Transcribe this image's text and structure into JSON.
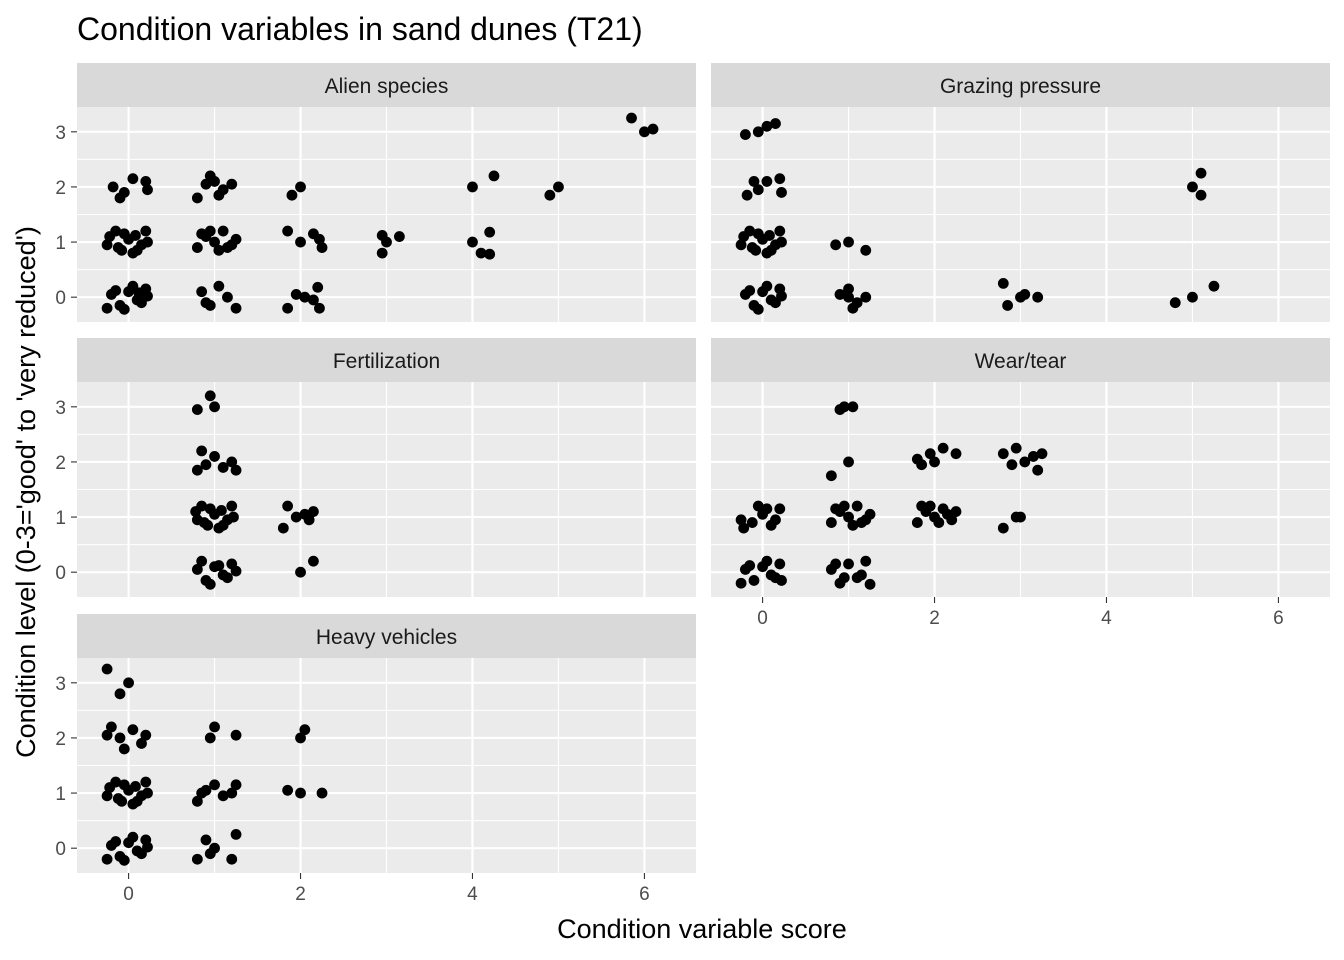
{
  "chart_data": {
    "type": "scatter",
    "title": "Condition variables in sand dunes (T21)",
    "xlabel": "Condition variable score",
    "ylabel": "Condition level (0-3='good' to 'very reduced')",
    "xlim": [
      -0.6,
      6.6
    ],
    "ylim": [
      -0.45,
      3.45
    ],
    "x_ticks": [
      0,
      2,
      4,
      6
    ],
    "y_ticks": [
      0,
      1,
      2,
      3
    ],
    "x_minor_ticks": [
      1,
      3,
      5
    ],
    "grid": true,
    "point_color": "#000000",
    "panel_background": "#ebebeb",
    "strip_background": "#d9d9d9",
    "jitter": true,
    "facets": [
      {
        "name": "Alien species",
        "points": [
          [
            -0.2,
            0.05
          ],
          [
            -0.1,
            -0.15
          ],
          [
            0,
            0.1
          ],
          [
            0.1,
            -0.05
          ],
          [
            0.2,
            0.15
          ],
          [
            -0.25,
            -0.2
          ],
          [
            0.05,
            0.2
          ],
          [
            0.15,
            -0.1
          ],
          [
            -0.15,
            0.12
          ],
          [
            0.22,
            0.02
          ],
          [
            -0.05,
            -0.22
          ],
          [
            0.12,
            0.08
          ],
          [
            -0.22,
            1.1
          ],
          [
            -0.12,
            0.9
          ],
          [
            0,
            1.05
          ],
          [
            0.1,
            0.85
          ],
          [
            0.2,
            1.2
          ],
          [
            -0.05,
            1.15
          ],
          [
            0.15,
            0.95
          ],
          [
            -0.25,
            0.95
          ],
          [
            0.05,
            0.8
          ],
          [
            0.22,
            1.0
          ],
          [
            -0.15,
            1.2
          ],
          [
            0.08,
            1.12
          ],
          [
            -0.08,
            0.85
          ],
          [
            -0.18,
            2.0
          ],
          [
            -0.05,
            1.9
          ],
          [
            0.05,
            2.15
          ],
          [
            0.2,
            2.1
          ],
          [
            -0.1,
            1.8
          ],
          [
            0.22,
            1.95
          ],
          [
            0.85,
            0.1
          ],
          [
            0.95,
            -0.15
          ],
          [
            1.05,
            0.2
          ],
          [
            1.15,
            0.0
          ],
          [
            1.25,
            -0.2
          ],
          [
            0.9,
            -0.1
          ],
          [
            0.8,
            0.9
          ],
          [
            0.9,
            1.1
          ],
          [
            1.0,
            1.0
          ],
          [
            1.1,
            1.2
          ],
          [
            1.2,
            0.95
          ],
          [
            0.85,
            1.15
          ],
          [
            1.05,
            0.85
          ],
          [
            1.25,
            1.05
          ],
          [
            0.95,
            1.2
          ],
          [
            1.15,
            0.9
          ],
          [
            0.8,
            1.8
          ],
          [
            0.9,
            2.05
          ],
          [
            1.0,
            2.1
          ],
          [
            1.1,
            1.95
          ],
          [
            1.2,
            2.05
          ],
          [
            0.95,
            2.2
          ],
          [
            1.05,
            1.85
          ],
          [
            1.85,
            -0.2
          ],
          [
            1.95,
            0.05
          ],
          [
            2.05,
            0.0
          ],
          [
            2.15,
            -0.05
          ],
          [
            2.2,
            0.18
          ],
          [
            2.22,
            -0.2
          ],
          [
            1.85,
            1.2
          ],
          [
            2.0,
            1.0
          ],
          [
            2.15,
            1.15
          ],
          [
            2.25,
            0.9
          ],
          [
            2.22,
            1.05
          ],
          [
            1.9,
            1.85
          ],
          [
            2.0,
            2.0
          ],
          [
            2.95,
            0.8
          ],
          [
            3.0,
            1.0
          ],
          [
            3.15,
            1.1
          ],
          [
            2.95,
            1.12
          ],
          [
            4.0,
            1.0
          ],
          [
            4.1,
            0.8
          ],
          [
            4.2,
            1.18
          ],
          [
            4.2,
            0.78
          ],
          [
            4.0,
            2.0
          ],
          [
            4.25,
            2.2
          ],
          [
            4.9,
            1.85
          ],
          [
            5.0,
            2.0
          ],
          [
            5.85,
            3.25
          ],
          [
            6.0,
            3.0
          ],
          [
            6.1,
            3.05
          ]
        ]
      },
      {
        "name": "Grazing pressure",
        "points": [
          [
            -0.2,
            0.05
          ],
          [
            -0.1,
            -0.15
          ],
          [
            0,
            0.1
          ],
          [
            0.1,
            -0.05
          ],
          [
            0.2,
            0.15
          ],
          [
            0.05,
            0.2
          ],
          [
            -0.05,
            -0.22
          ],
          [
            0.15,
            -0.1
          ],
          [
            -0.15,
            0.12
          ],
          [
            0.22,
            0.02
          ],
          [
            -0.22,
            1.1
          ],
          [
            -0.12,
            0.9
          ],
          [
            0,
            1.05
          ],
          [
            0.1,
            0.85
          ],
          [
            0.2,
            1.2
          ],
          [
            -0.05,
            1.15
          ],
          [
            0.15,
            0.95
          ],
          [
            -0.25,
            0.95
          ],
          [
            0.05,
            0.8
          ],
          [
            0.22,
            1.0
          ],
          [
            -0.15,
            1.2
          ],
          [
            0.08,
            1.12
          ],
          [
            -0.08,
            0.85
          ],
          [
            -0.18,
            1.85
          ],
          [
            -0.05,
            1.95
          ],
          [
            0.05,
            2.1
          ],
          [
            0.2,
            2.15
          ],
          [
            -0.1,
            2.1
          ],
          [
            0.22,
            1.9
          ],
          [
            -0.05,
            3.0
          ],
          [
            0.05,
            3.1
          ],
          [
            0.15,
            3.15
          ],
          [
            -0.2,
            2.95
          ],
          [
            1.0,
            0.0
          ],
          [
            1.0,
            0.15
          ],
          [
            0.9,
            0.05
          ],
          [
            1.1,
            -0.1
          ],
          [
            1.2,
            0.0
          ],
          [
            1.05,
            -0.2
          ],
          [
            0.85,
            0.95
          ],
          [
            1.0,
            1.0
          ],
          [
            1.2,
            0.85
          ],
          [
            3.0,
            0.0
          ],
          [
            3.05,
            0.05
          ],
          [
            2.8,
            0.25
          ],
          [
            2.85,
            -0.15
          ],
          [
            3.2,
            0.0
          ],
          [
            5.0,
            2.0
          ],
          [
            5.1,
            2.25
          ],
          [
            5.1,
            1.85
          ],
          [
            5.0,
            0.0
          ],
          [
            4.8,
            -0.1
          ],
          [
            5.25,
            0.2
          ]
        ]
      },
      {
        "name": "Fertilization",
        "points": [
          [
            0.8,
            0.05
          ],
          [
            0.9,
            -0.15
          ],
          [
            1.0,
            0.1
          ],
          [
            1.1,
            -0.05
          ],
          [
            1.2,
            0.15
          ],
          [
            0.85,
            0.2
          ],
          [
            0.95,
            -0.22
          ],
          [
            1.15,
            -0.1
          ],
          [
            1.05,
            0.12
          ],
          [
            1.25,
            0.02
          ],
          [
            0.78,
            1.1
          ],
          [
            0.88,
            0.9
          ],
          [
            1.0,
            1.05
          ],
          [
            1.1,
            0.85
          ],
          [
            1.2,
            1.2
          ],
          [
            0.95,
            1.15
          ],
          [
            1.15,
            0.95
          ],
          [
            0.8,
            0.95
          ],
          [
            1.05,
            0.8
          ],
          [
            1.22,
            1.0
          ],
          [
            0.85,
            1.2
          ],
          [
            1.08,
            1.12
          ],
          [
            0.92,
            0.85
          ],
          [
            0.8,
            1.85
          ],
          [
            0.9,
            1.95
          ],
          [
            1.0,
            2.1
          ],
          [
            1.1,
            1.9
          ],
          [
            1.2,
            2.0
          ],
          [
            0.85,
            2.2
          ],
          [
            1.25,
            1.85
          ],
          [
            0.8,
            2.95
          ],
          [
            1.0,
            3.0
          ],
          [
            0.95,
            3.2
          ],
          [
            1.8,
            0.8
          ],
          [
            1.85,
            1.2
          ],
          [
            1.95,
            1.0
          ],
          [
            2.05,
            1.05
          ],
          [
            2.1,
            0.95
          ],
          [
            2.15,
            1.1
          ],
          [
            2.0,
            0.0
          ],
          [
            2.15,
            0.2
          ]
        ]
      },
      {
        "name": "Wear/tear",
        "points": [
          [
            -0.2,
            0.05
          ],
          [
            -0.1,
            -0.15
          ],
          [
            0,
            0.1
          ],
          [
            0.1,
            -0.05
          ],
          [
            0.2,
            0.15
          ],
          [
            -0.25,
            -0.2
          ],
          [
            0.05,
            0.2
          ],
          [
            0.15,
            -0.1
          ],
          [
            -0.15,
            0.12
          ],
          [
            0.22,
            -0.15
          ],
          [
            -0.22,
            0.8
          ],
          [
            -0.12,
            0.9
          ],
          [
            0,
            1.05
          ],
          [
            0.1,
            0.85
          ],
          [
            0.2,
            1.15
          ],
          [
            -0.05,
            1.2
          ],
          [
            0.15,
            0.95
          ],
          [
            -0.25,
            0.95
          ],
          [
            0.05,
            1.15
          ],
          [
            0.8,
            0.05
          ],
          [
            0.9,
            -0.2
          ],
          [
            1.0,
            0.15
          ],
          [
            1.1,
            -0.1
          ],
          [
            1.2,
            0.2
          ],
          [
            0.85,
            0.15
          ],
          [
            0.95,
            -0.1
          ],
          [
            1.15,
            -0.05
          ],
          [
            1.25,
            -0.22
          ],
          [
            0.8,
            0.9
          ],
          [
            0.9,
            1.1
          ],
          [
            1.0,
            1.0
          ],
          [
            1.1,
            1.2
          ],
          [
            1.2,
            0.95
          ],
          [
            0.85,
            1.15
          ],
          [
            1.05,
            0.85
          ],
          [
            1.25,
            1.05
          ],
          [
            0.95,
            1.2
          ],
          [
            1.15,
            0.9
          ],
          [
            0.8,
            1.75
          ],
          [
            1.0,
            2.0
          ],
          [
            0.95,
            3.0
          ],
          [
            1.05,
            3.0
          ],
          [
            0.9,
            2.95
          ],
          [
            1.8,
            0.9
          ],
          [
            1.9,
            1.1
          ],
          [
            2.0,
            1.0
          ],
          [
            2.1,
            1.15
          ],
          [
            2.2,
            0.95
          ],
          [
            1.85,
            1.2
          ],
          [
            2.05,
            0.9
          ],
          [
            2.25,
            1.1
          ],
          [
            1.95,
            1.2
          ],
          [
            2.15,
            1.05
          ],
          [
            1.85,
            1.95
          ],
          [
            2.0,
            2.0
          ],
          [
            1.95,
            2.15
          ],
          [
            2.1,
            2.25
          ],
          [
            2.25,
            2.15
          ],
          [
            1.8,
            2.05
          ],
          [
            2.8,
            0.8
          ],
          [
            2.95,
            1.0
          ],
          [
            3.0,
            1.0
          ],
          [
            2.8,
            2.15
          ],
          [
            2.95,
            2.25
          ],
          [
            3.05,
            2.0
          ],
          [
            3.15,
            2.1
          ],
          [
            3.2,
            1.85
          ],
          [
            2.9,
            1.95
          ],
          [
            3.25,
            2.15
          ]
        ]
      },
      {
        "name": "Heavy vehicles",
        "points": [
          [
            -0.2,
            0.05
          ],
          [
            -0.1,
            -0.15
          ],
          [
            0,
            0.1
          ],
          [
            0.1,
            -0.05
          ],
          [
            0.2,
            0.15
          ],
          [
            -0.25,
            -0.2
          ],
          [
            0.05,
            0.2
          ],
          [
            0.15,
            -0.1
          ],
          [
            -0.15,
            0.12
          ],
          [
            0.22,
            0.02
          ],
          [
            -0.05,
            -0.22
          ],
          [
            -0.22,
            1.1
          ],
          [
            -0.12,
            0.9
          ],
          [
            0,
            1.05
          ],
          [
            0.1,
            0.85
          ],
          [
            0.2,
            1.2
          ],
          [
            -0.05,
            1.15
          ],
          [
            0.15,
            0.95
          ],
          [
            -0.25,
            0.95
          ],
          [
            0.05,
            0.8
          ],
          [
            0.22,
            1.0
          ],
          [
            -0.15,
            1.2
          ],
          [
            0.08,
            1.12
          ],
          [
            -0.08,
            0.85
          ],
          [
            -0.2,
            2.2
          ],
          [
            -0.05,
            1.8
          ],
          [
            0.05,
            2.15
          ],
          [
            0.2,
            2.05
          ],
          [
            -0.1,
            2.0
          ],
          [
            0.15,
            1.9
          ],
          [
            -0.25,
            2.05
          ],
          [
            -0.25,
            3.25
          ],
          [
            -0.1,
            2.8
          ],
          [
            0.0,
            3.0
          ],
          [
            0.8,
            -0.2
          ],
          [
            0.9,
            0.15
          ],
          [
            1.0,
            0.0
          ],
          [
            1.2,
            -0.2
          ],
          [
            1.25,
            0.25
          ],
          [
            0.95,
            -0.1
          ],
          [
            0.8,
            0.85
          ],
          [
            0.9,
            1.05
          ],
          [
            1.0,
            1.15
          ],
          [
            1.1,
            0.95
          ],
          [
            1.2,
            1.0
          ],
          [
            1.25,
            1.15
          ],
          [
            0.85,
            1.0
          ],
          [
            0.95,
            2.0
          ],
          [
            1.0,
            2.2
          ],
          [
            1.25,
            2.05
          ],
          [
            1.85,
            1.05
          ],
          [
            2.0,
            1.0
          ],
          [
            2.25,
            1.0
          ],
          [
            2.0,
            2.0
          ],
          [
            2.05,
            2.15
          ]
        ]
      }
    ]
  }
}
